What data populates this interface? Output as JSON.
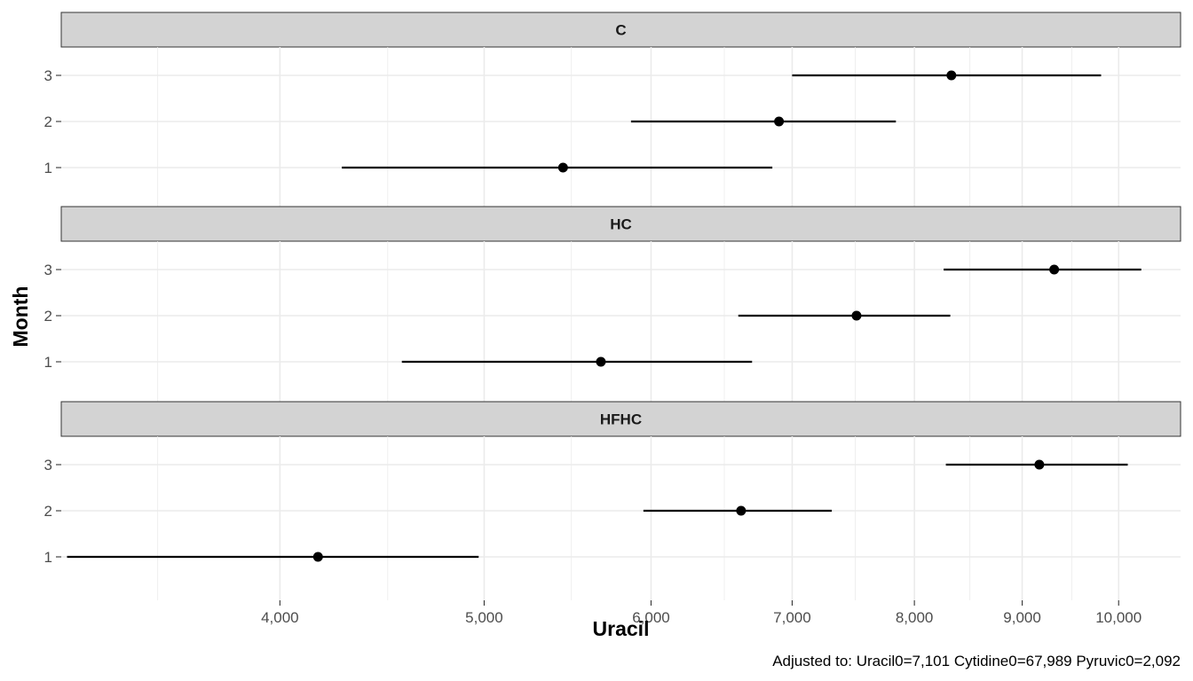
{
  "chart_data": {
    "type": "scatter",
    "subtype": "point-range, faceted",
    "x_scale": "log",
    "xlabel": "Uracil",
    "ylabel": "Month",
    "xlim": [
      3150,
      10700
    ],
    "x_ticks": [
      4000,
      5000,
      6000,
      7000,
      8000,
      9000,
      10000
    ],
    "x_tick_labels": [
      "4,000",
      "5,000",
      "6,000",
      "7,000",
      "8,000",
      "9,000",
      "10,000"
    ],
    "x_minor_ticks": [
      3500,
      4500,
      5500,
      6500,
      7500,
      8500,
      9500
    ],
    "y_categories": [
      "1",
      "2",
      "3"
    ],
    "grid": true,
    "caption": "Adjusted to: Uracil0=7,101 Cytidine0=67,989 Pyruvic0=2,092",
    "facets": [
      {
        "name": "C",
        "points": [
          {
            "month": "1",
            "estimate": 5450,
            "lower": 4280,
            "upper": 6850
          },
          {
            "month": "2",
            "estimate": 6900,
            "lower": 5870,
            "upper": 7840
          },
          {
            "month": "3",
            "estimate": 8330,
            "lower": 7000,
            "upper": 9810
          }
        ]
      },
      {
        "name": "HC",
        "points": [
          {
            "month": "1",
            "estimate": 5680,
            "lower": 4570,
            "upper": 6700
          },
          {
            "month": "2",
            "estimate": 7510,
            "lower": 6600,
            "upper": 8320
          },
          {
            "month": "3",
            "estimate": 9320,
            "lower": 8260,
            "upper": 10250
          }
        ]
      },
      {
        "name": "HFHC",
        "points": [
          {
            "month": "1",
            "estimate": 4170,
            "lower": 3170,
            "upper": 4970
          },
          {
            "month": "2",
            "estimate": 6620,
            "lower": 5950,
            "upper": 7310
          },
          {
            "month": "3",
            "estimate": 9170,
            "lower": 8280,
            "upper": 10100
          }
        ]
      }
    ]
  }
}
